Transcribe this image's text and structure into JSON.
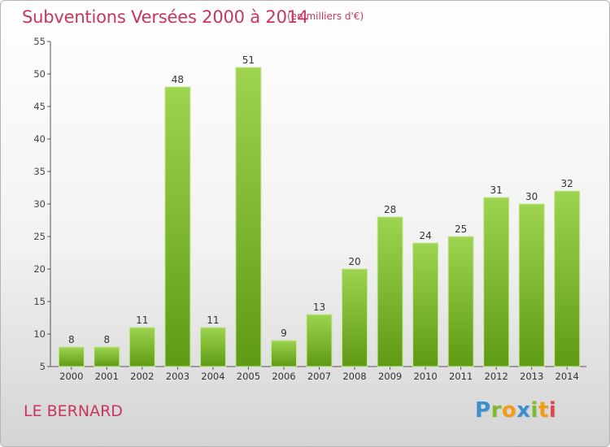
{
  "header": {
    "title": "Subventions Versées 2000 à 2014",
    "unit": "(en milliers d'€)"
  },
  "footer": {
    "place": "LE BERNARD",
    "logo": "Proxiti"
  },
  "colors": {
    "title": "#c8365e",
    "bar_light": "#9ed44f",
    "bar_dark": "#5f9a14"
  },
  "chart_data": {
    "type": "bar",
    "title": "Subventions Versées 2000 à 2014",
    "subtitle": "(en milliers d'€)",
    "xlabel": "",
    "ylabel": "",
    "categories": [
      "2000",
      "2001",
      "2002",
      "2003",
      "2004",
      "2005",
      "2006",
      "2007",
      "2008",
      "2009",
      "2010",
      "2011",
      "2012",
      "2013",
      "2014"
    ],
    "values": [
      8,
      8,
      11,
      48,
      11,
      51,
      9,
      13,
      20,
      28,
      24,
      25,
      31,
      30,
      32
    ],
    "ylim": [
      5,
      55
    ],
    "yticks": [
      5,
      10,
      15,
      20,
      25,
      30,
      35,
      40,
      45,
      50,
      55
    ],
    "grid": false,
    "data_labels": true
  }
}
